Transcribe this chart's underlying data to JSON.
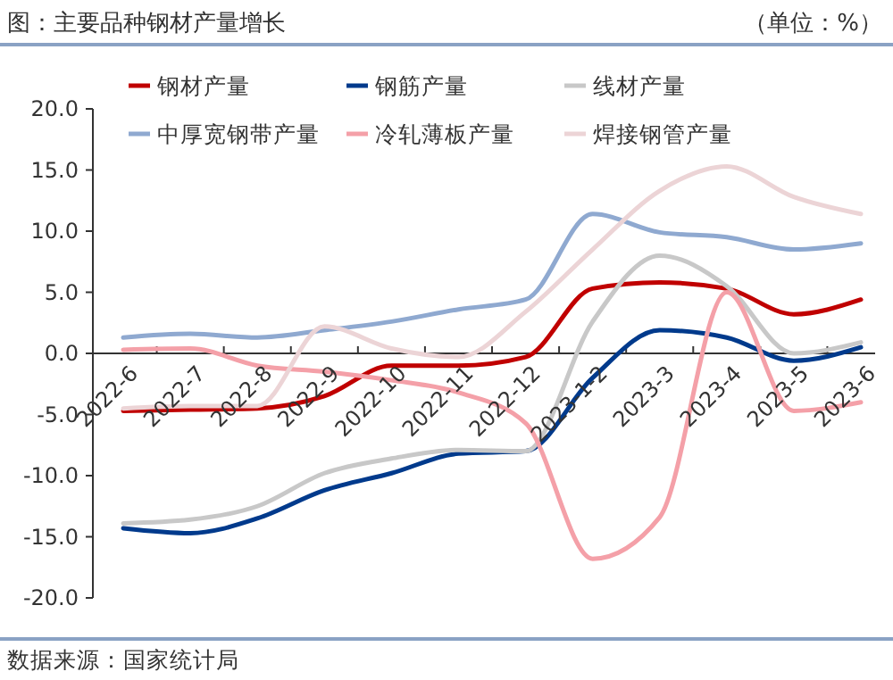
{
  "chart_data": {
    "type": "line",
    "title": "图：主要品种钢材产量增长",
    "ylabel": "（单位：%）",
    "annotations": [
      "数据来源：国家统计局"
    ],
    "categories": [
      "2022-6",
      "2022-7",
      "2022-8",
      "2022-9",
      "2022-10",
      "2022-11",
      "2022-12",
      "2023-1-2",
      "2023-3",
      "2023-4",
      "2023-5",
      "2023-6"
    ],
    "series": [
      {
        "name": "钢材产量",
        "color": "#c00000",
        "values": [
          -4.7,
          -4.6,
          -4.5,
          -3.5,
          -1.0,
          -1.0,
          -0.3,
          5.3,
          5.8,
          5.3,
          3.2,
          4.4
        ]
      },
      {
        "name": "钢筋产量",
        "color": "#003a8c",
        "values": [
          -14.3,
          -14.7,
          -13.5,
          -11.2,
          -9.8,
          -8.2,
          -8.0,
          -2.0,
          1.9,
          1.3,
          -0.6,
          0.5
        ]
      },
      {
        "name": "线材产量",
        "color": "#c8c8c8",
        "values": [
          -13.9,
          -13.6,
          -12.5,
          -9.8,
          -8.6,
          -7.9,
          -8.0,
          2.6,
          8.0,
          5.5,
          0.0,
          0.9
        ]
      },
      {
        "name": "中厚宽钢带产量",
        "color": "#8fa9d0",
        "values": [
          1.3,
          1.6,
          1.3,
          1.9,
          2.6,
          3.6,
          4.4,
          11.4,
          9.9,
          9.5,
          8.5,
          9.0
        ]
      },
      {
        "name": "冷轧薄板产量",
        "color": "#f4a0a8",
        "values": [
          0.3,
          0.4,
          -1.0,
          -1.5,
          -2.2,
          -3.2,
          -5.7,
          -16.8,
          -13.4,
          5.0,
          -4.7,
          -4.0
        ]
      },
      {
        "name": "焊接钢管产量",
        "color": "#ecd4d6",
        "values": [
          -4.5,
          -4.3,
          -4.3,
          2.2,
          0.4,
          -0.3,
          3.4,
          8.5,
          13.3,
          15.3,
          12.8,
          11.4
        ]
      }
    ],
    "ylim": [
      -20,
      20
    ],
    "yticks": [
      {
        "value": -20,
        "label": "-20.0"
      },
      {
        "value": -15,
        "label": "-15.0"
      },
      {
        "value": -10,
        "label": "-10.0"
      },
      {
        "value": -5,
        "label": "-5.0"
      },
      {
        "value": 0,
        "label": "0.0"
      },
      {
        "value": 5,
        "label": "5.0"
      },
      {
        "value": 10,
        "label": "10.0"
      },
      {
        "value": 15,
        "label": "15.0"
      },
      {
        "value": 20,
        "label": "20.0"
      }
    ],
    "grid": false,
    "legend": "top",
    "marker": "none",
    "line_style": "solid"
  }
}
